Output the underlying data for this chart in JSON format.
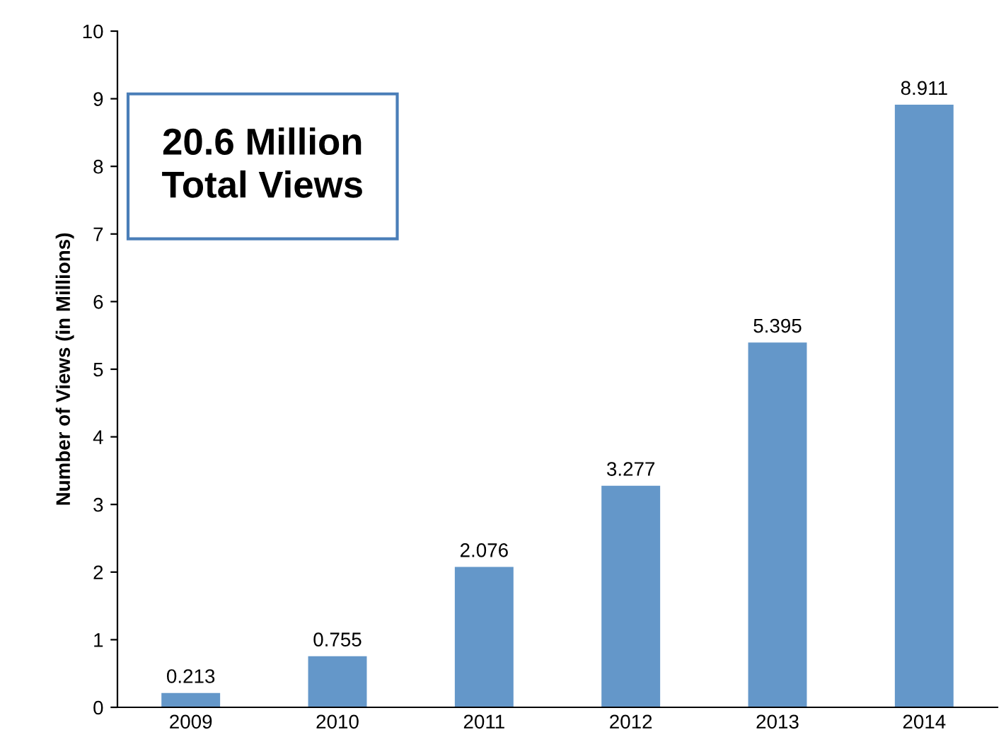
{
  "chart_data": {
    "type": "bar",
    "ylabel": "Number of Views (in Millions)",
    "categories": [
      "2009",
      "2010",
      "2011",
      "2012",
      "2013",
      "2014"
    ],
    "values": [
      0.213,
      0.755,
      2.076,
      3.277,
      5.395,
      8.911
    ],
    "color": "#6497c9",
    "ylim": [
      0,
      10
    ],
    "yticks": [
      0,
      1,
      2,
      3,
      4,
      5,
      6,
      7,
      8,
      9,
      10
    ],
    "grid": false,
    "data_labels": true,
    "annotations": [
      "20.6 Million\nTotal Views"
    ]
  }
}
